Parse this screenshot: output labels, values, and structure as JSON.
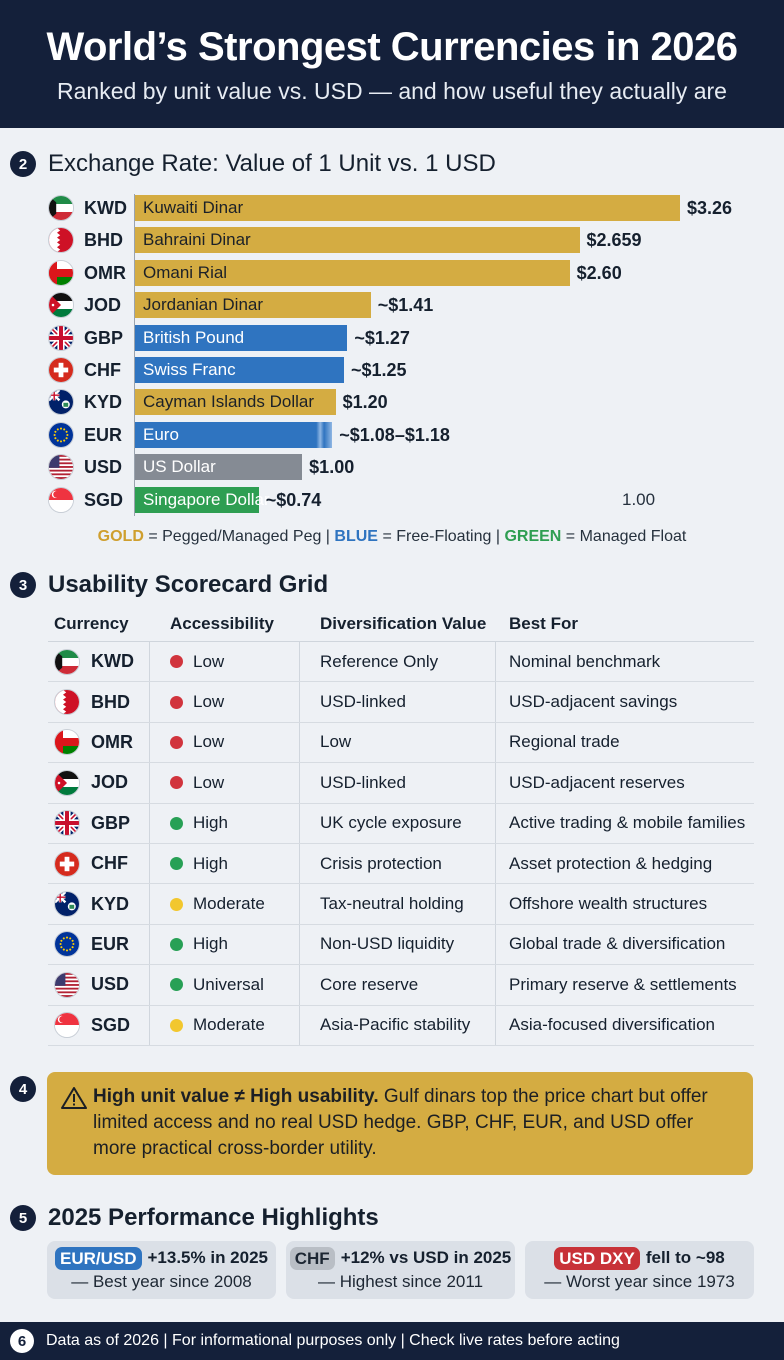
{
  "header": {
    "title": "World’s Strongest Currencies in 2026",
    "subtitle": "Ranked by unit value vs. USD — and how useful they actually are"
  },
  "sections": {
    "s2": {
      "num": "2",
      "title": "Exchange Rate: Value of 1 Unit vs. 1 USD"
    },
    "s3": {
      "num": "3",
      "title": "Usability Scorecard Grid"
    },
    "s4": {
      "num": "4"
    },
    "s5": {
      "num": "5",
      "title": "2025 Performance Highlights"
    },
    "s6": {
      "num": "6"
    }
  },
  "chart_data": {
    "type": "bar",
    "orientation": "horizontal",
    "title": "Exchange Rate: Value of 1 Unit vs. 1 USD",
    "categories": [
      "KWD",
      "BHD",
      "OMR",
      "JOD",
      "GBP",
      "CHF",
      "KYD",
      "EUR",
      "USD",
      "SGD"
    ],
    "names": [
      "Kuwaiti Dinar",
      "Bahraini Dinar",
      "Omani Rial",
      "Jordanian Dinar",
      "British Pound",
      "Swiss Franc",
      "Cayman Islands Dollar",
      "Euro",
      "US Dollar",
      "Singapore Dollar"
    ],
    "values": [
      3.26,
      2.659,
      2.6,
      1.41,
      1.27,
      1.25,
      1.2,
      1.18,
      1.0,
      0.74
    ],
    "value_labels": [
      "$3.26",
      "$2.659",
      "$2.60",
      "~$1.41",
      "~$1.27",
      "~$1.25",
      "$1.20",
      "~$1.08–$1.18",
      "$1.00",
      "~$0.74"
    ],
    "regimes": [
      "gold",
      "gold",
      "gold",
      "gold",
      "blue",
      "blue",
      "gold",
      "blue",
      "gray",
      "green"
    ],
    "colors": {
      "gold": "#d4ac42",
      "blue": "#2f74c0",
      "gray": "#858b94",
      "green": "#2e9e52"
    },
    "x_ticks": [
      "1.00"
    ],
    "xlim": [
      0,
      3.26
    ],
    "grid": false
  },
  "legend": {
    "gold": "GOLD",
    "gold_text": "= Pegged/Managed Peg |",
    "blue": "BLUE",
    "blue_text": "= Free-Floating |",
    "green": "GREEN",
    "green_text": "= Managed Float"
  },
  "table": {
    "headers": [
      "Currency",
      "Accessibility",
      "Diversification Value",
      "Best For"
    ],
    "status_colors": {
      "red": "#d1343d",
      "green": "#27a055",
      "yellow": "#f2c72e"
    },
    "rows": [
      {
        "code": "KWD",
        "access": "Low",
        "status": "red",
        "div": "Reference Only",
        "best": "Nominal benchmark"
      },
      {
        "code": "BHD",
        "access": "Low",
        "status": "red",
        "div": "USD-linked",
        "best": "USD-adjacent savings"
      },
      {
        "code": "OMR",
        "access": "Low",
        "status": "red",
        "div": "Low",
        "best": "Regional trade"
      },
      {
        "code": "JOD",
        "access": "Low",
        "status": "red",
        "div": "USD-linked",
        "best": "USD-adjacent reserves"
      },
      {
        "code": "GBP",
        "access": "High",
        "status": "green",
        "div": "UK cycle exposure",
        "best": "Active trading & mobile families"
      },
      {
        "code": "CHF",
        "access": "High",
        "status": "green",
        "div": "Crisis protection",
        "best": "Asset protection & hedging"
      },
      {
        "code": "KYD",
        "access": "Moderate",
        "status": "yellow",
        "div": "Tax-neutral holding",
        "best": "Offshore wealth structures"
      },
      {
        "code": "EUR",
        "access": "High",
        "status": "green",
        "div": "Non-USD liquidity",
        "best": "Global trade & diversification"
      },
      {
        "code": "USD",
        "access": "Universal",
        "status": "green",
        "div": "Core reserve",
        "best": "Primary reserve & settlements"
      },
      {
        "code": "SGD",
        "access": "Moderate",
        "status": "yellow",
        "div": "Asia-Pacific stability",
        "best": "Asia-focused diversification"
      }
    ]
  },
  "note": {
    "bold": "High unit value ≠ High usability.",
    "text": " Gulf dinars top the price chart but offer limited access and no real USD hedge. GBP, CHF, EUR, and USD offer more practical cross-border utility.",
    "icon": "warning-icon"
  },
  "highlights": [
    {
      "pill": "EUR/USD",
      "pill_style": "blue",
      "stat": "+13.5% in 2025",
      "detail": "— Best year since 2008"
    },
    {
      "pill": "CHF",
      "pill_style": "gray",
      "stat": "+12% vs USD in 2025",
      "detail": "— Highest since 2011"
    },
    {
      "pill": "USD DXY",
      "pill_style": "red",
      "stat": "fell to ~98",
      "detail": "— Worst year since 1973"
    }
  ],
  "footer": {
    "text": "Data as of 2026 | For informational purposes only | Check live rates before acting"
  }
}
